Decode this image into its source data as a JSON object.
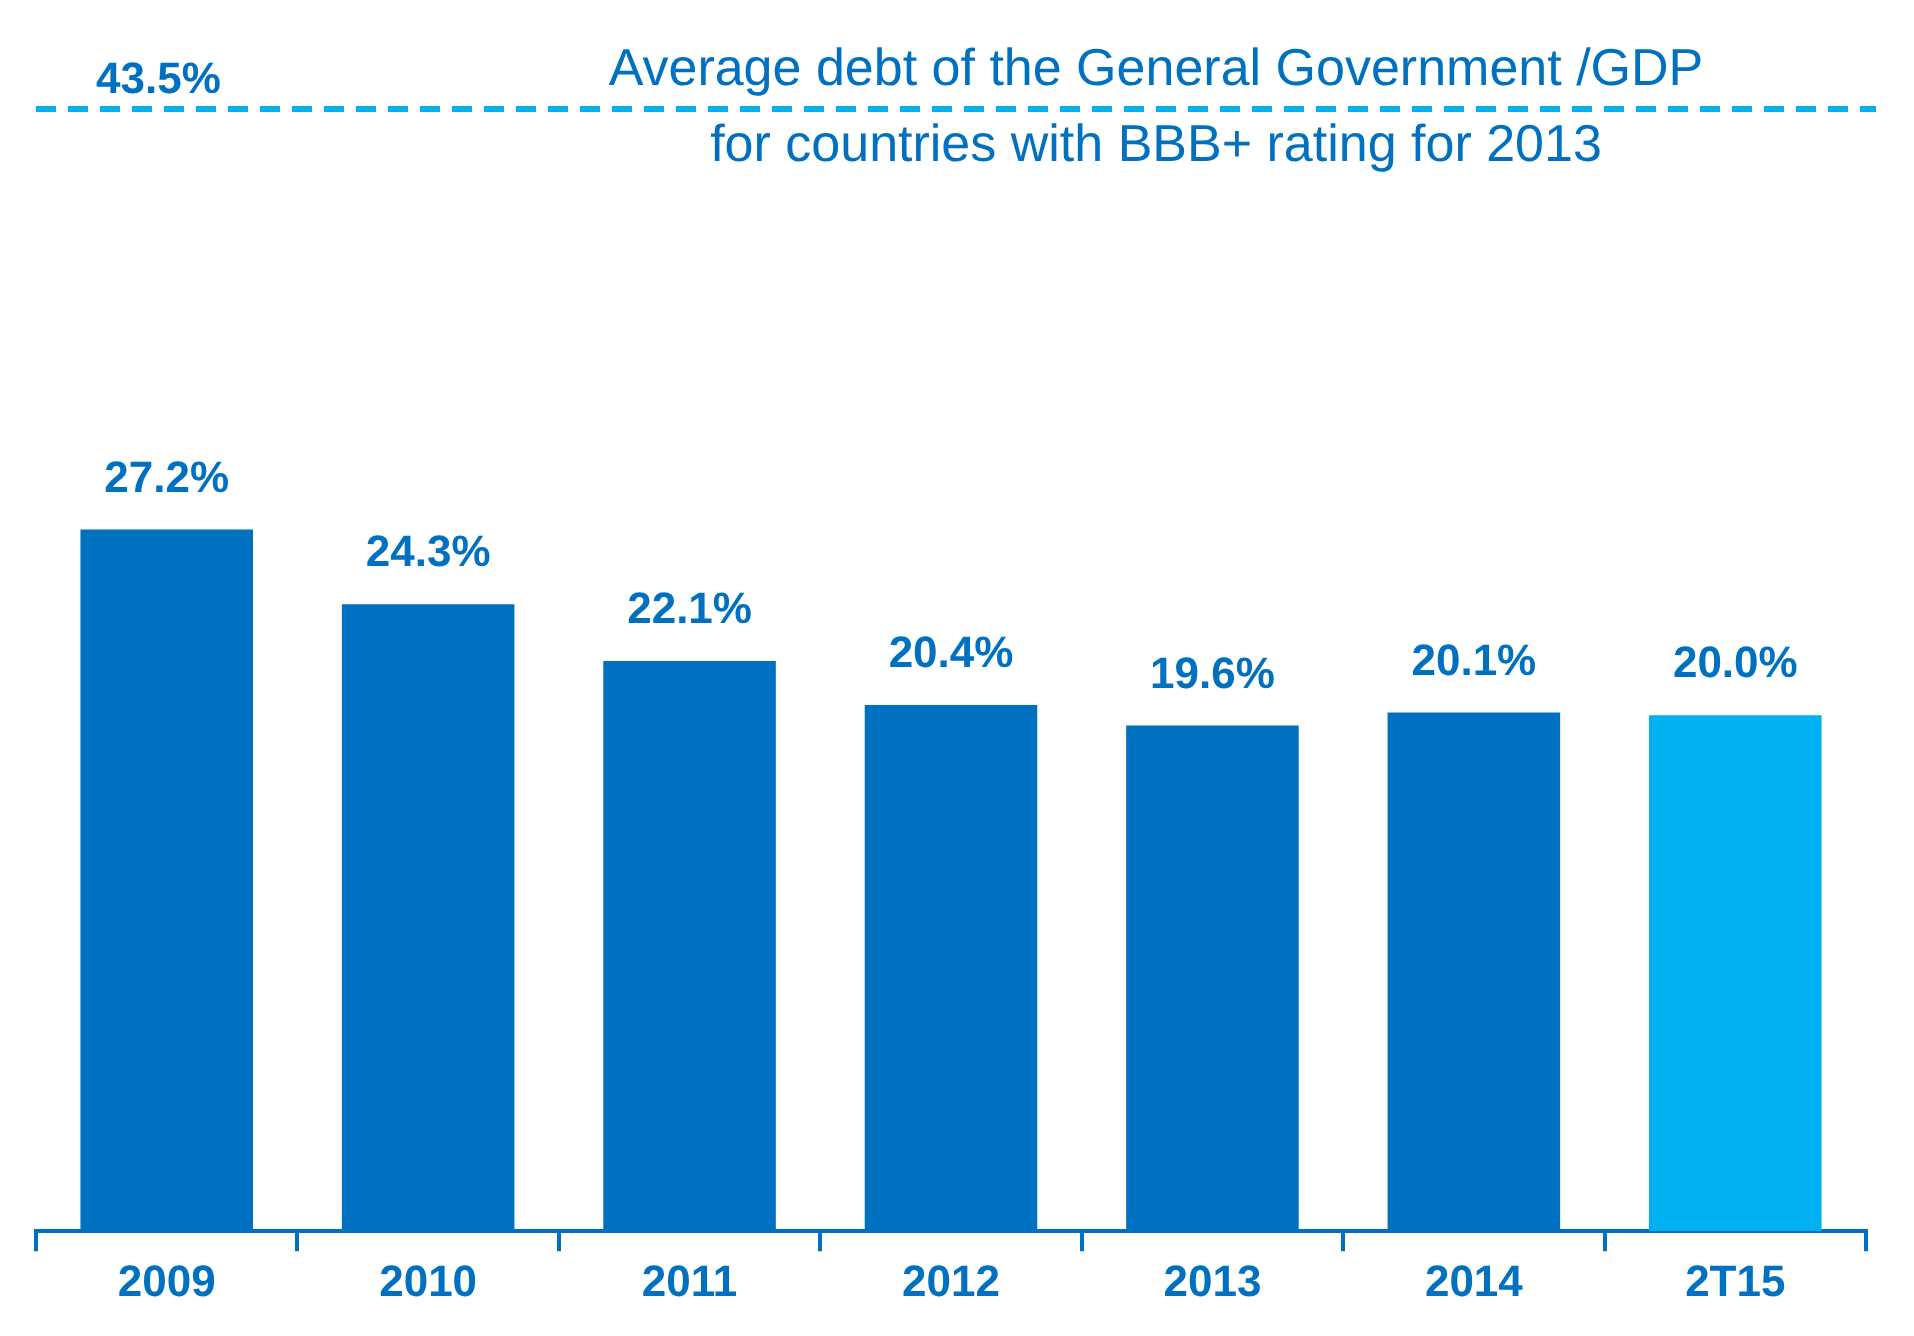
{
  "chart_data": {
    "type": "bar",
    "categories": [
      "2009",
      "2010",
      "2011",
      "2012",
      "2013",
      "2014",
      "2T15"
    ],
    "values": [
      27.2,
      24.3,
      22.1,
      20.4,
      19.6,
      20.1,
      20.0
    ],
    "colors": [
      "#0070c0",
      "#0070c0",
      "#0070c0",
      "#0070c0",
      "#0070c0",
      "#0070c0",
      "#00b0f0"
    ],
    "value_labels": [
      "27.2%",
      "24.3%",
      "22.1%",
      "20.4%",
      "19.6%",
      "20.1%",
      "20.0%"
    ],
    "tick_labels": "x",
    "ref_lines": [
      {
        "axis": "y",
        "value": 43.5,
        "label": "Average debt of the General Government /GDP for countries with BBB+ rating for 2013",
        "color": "#00b0f0",
        "line_style": "dashed"
      }
    ],
    "annotations": [
      {
        "text": "43.5%",
        "y": 43.5
      }
    ]
  }
}
